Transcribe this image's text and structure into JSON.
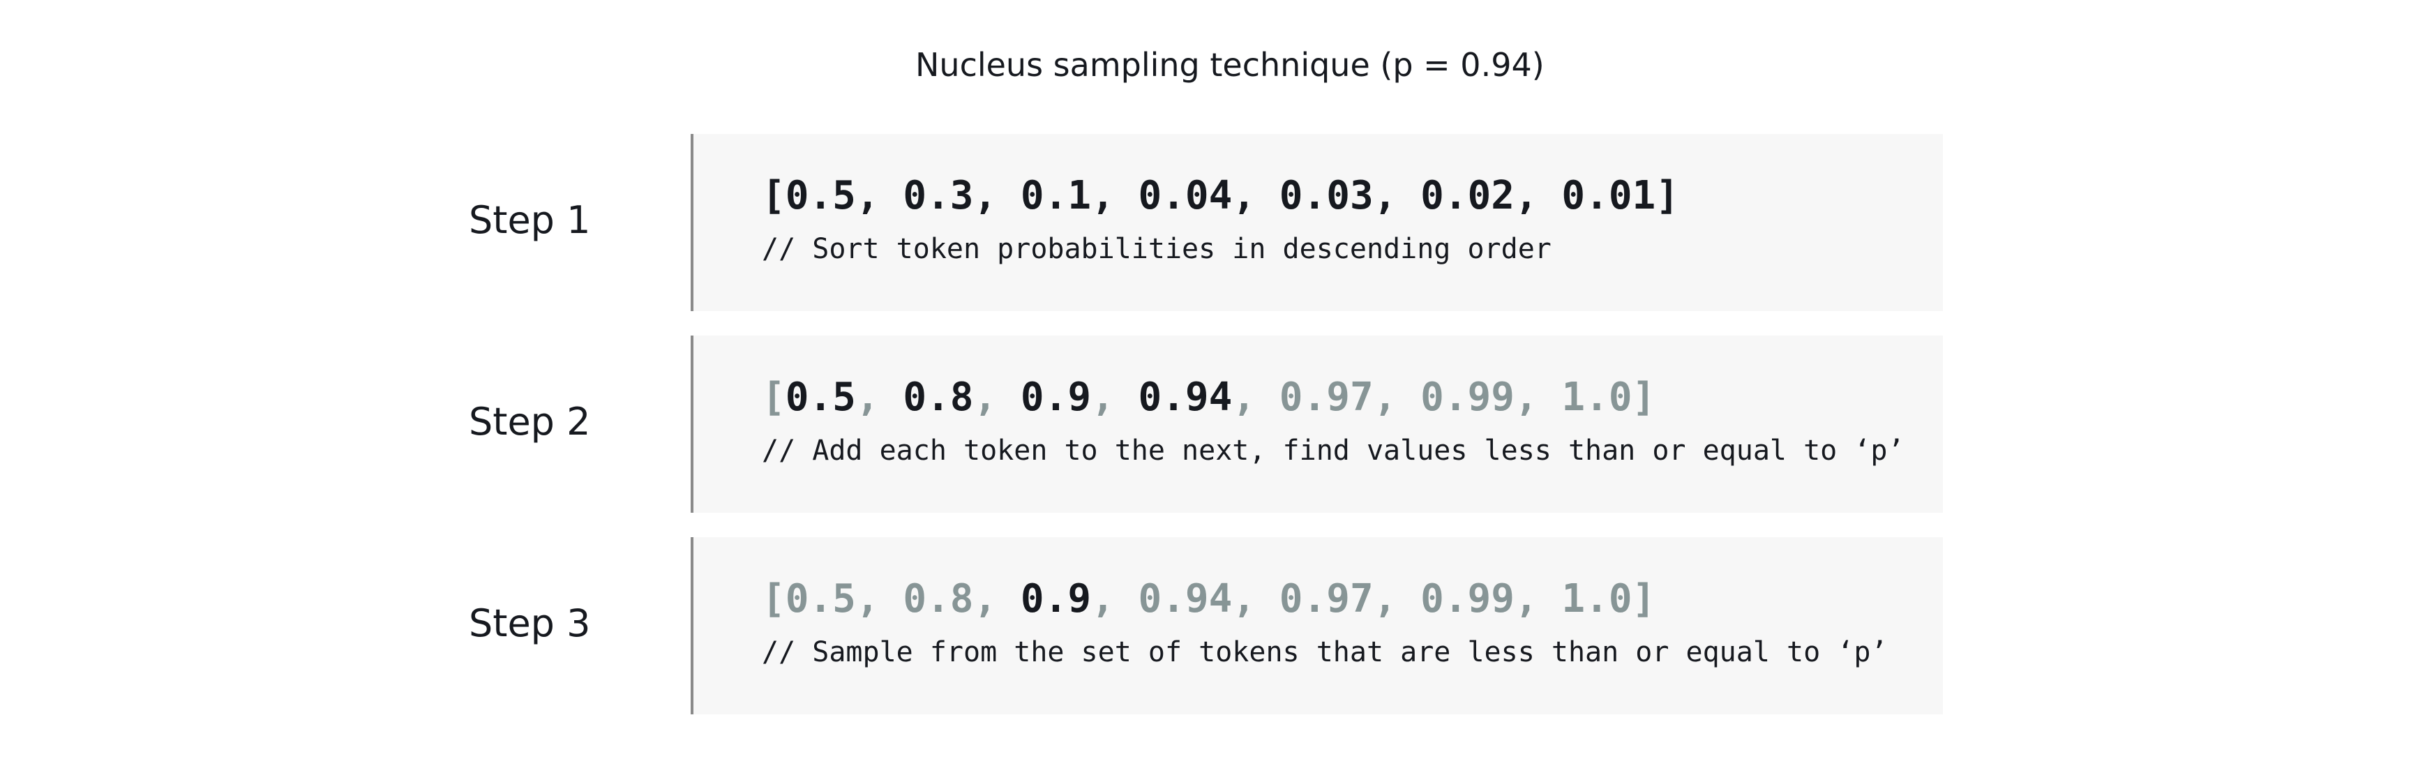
{
  "title": "Nucleus sampling technique (p = 0.94)",
  "colors": {
    "highlight": "#16191f",
    "muted": "#879596",
    "box_background": "#f7f7f7",
    "box_border": "#8a8a8a"
  },
  "steps": [
    {
      "label": "Step 1",
      "array": {
        "open_bracket": "[",
        "close_bracket": "]",
        "separator": ", ",
        "values": [
          "0.5",
          "0.3",
          "0.1",
          "0.04",
          "0.03",
          "0.02",
          "0.01"
        ],
        "highlighted": [
          true,
          true,
          true,
          true,
          true,
          true,
          true
        ],
        "bracket_highlighted": true,
        "separator_highlight": [
          true,
          true,
          true,
          true,
          true,
          true
        ]
      },
      "comment": "// Sort token probabilities in descending order"
    },
    {
      "label": "Step 2",
      "array": {
        "open_bracket": "[",
        "close_bracket": "]",
        "separator": ", ",
        "values": [
          "0.5",
          "0.8",
          "0.9",
          "0.94",
          "0.97",
          "0.99",
          "1.0"
        ],
        "highlighted": [
          true,
          true,
          true,
          true,
          false,
          false,
          false
        ],
        "bracket_highlighted": false,
        "separator_highlight": [
          false,
          false,
          false,
          false,
          false,
          false
        ]
      },
      "comment": "// Add each token to the next, find values less than or equal to ‘p’"
    },
    {
      "label": "Step 3",
      "array": {
        "open_bracket": "[",
        "close_bracket": "]",
        "separator": ", ",
        "values": [
          "0.5",
          "0.8",
          "0.9",
          "0.94",
          "0.97",
          "0.99",
          "1.0"
        ],
        "highlighted": [
          false,
          false,
          true,
          false,
          false,
          false,
          false
        ],
        "bracket_highlighted": false,
        "separator_highlight": [
          false,
          false,
          false,
          false,
          false,
          false
        ]
      },
      "comment": "// Sample from the set of tokens that are less than or equal to ‘p’"
    }
  ]
}
